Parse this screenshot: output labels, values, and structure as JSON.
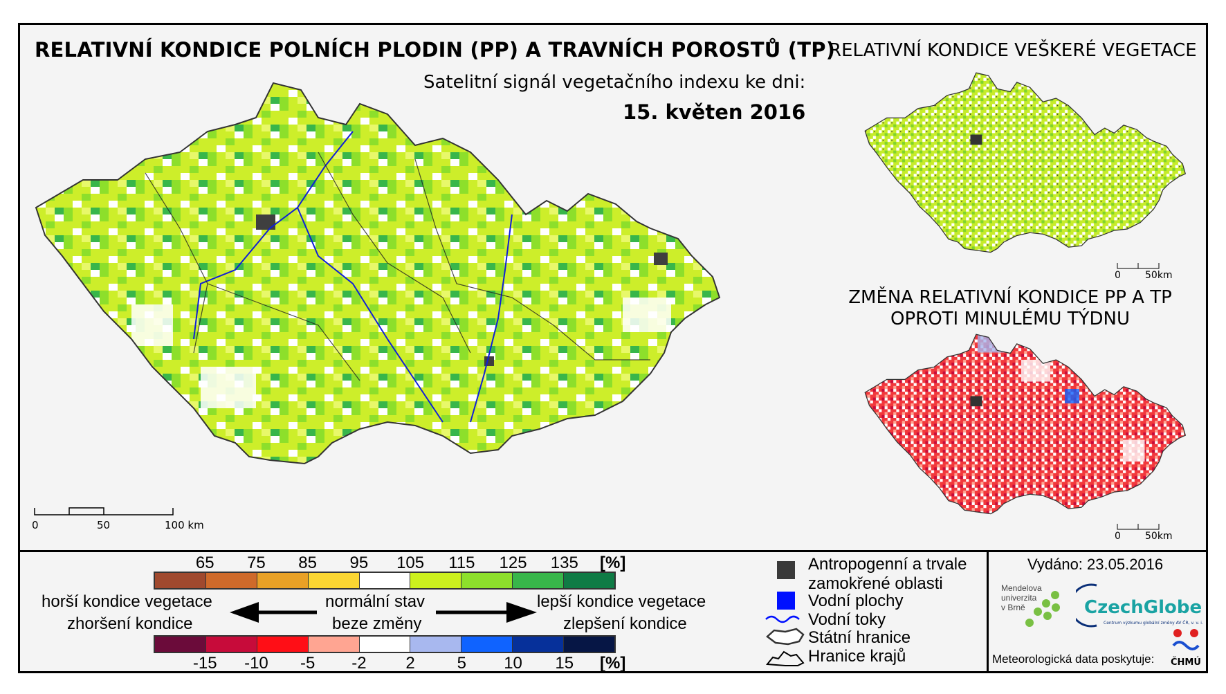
{
  "titles": {
    "main": "RELATIVNÍ KONDICE POLNÍCH PLODIN (PP) A TRAVNÍCH POROSTŮ (TP)",
    "subtitle": "Satelitní signál vegetačního indexu ke dni:",
    "date": "15. květen 2016",
    "right_top": "RELATIVNÍ KONDICE VEŠKERÉ VEGETACE",
    "right_bottom": "ZMĚNA RELATIVNÍ KONDICE PP A TP OPROTI MINULÉMU TÝDNU"
  },
  "scale_main": {
    "labels": [
      "0",
      "50",
      "100 km"
    ]
  },
  "scale_small": {
    "labels": [
      "0",
      "50km"
    ]
  },
  "legend_condition": {
    "ticks": [
      "65",
      "75",
      "85",
      "95",
      "105",
      "115",
      "125",
      "135"
    ],
    "unit": "[%]",
    "colors": [
      "#a0492e",
      "#cf6a2a",
      "#e9a126",
      "#fbd632",
      "#ffffff",
      "#ccf01e",
      "#8ddf2b",
      "#38b64a",
      "#0f7b45"
    ]
  },
  "legend_change": {
    "ticks": [
      "-15",
      "-10",
      "-5",
      "-2",
      "2",
      "5",
      "10",
      "15"
    ],
    "unit": "[%]",
    "colors": [
      "#6b0b3a",
      "#c70b3a",
      "#ff0e16",
      "#ffa592",
      "#ffffff",
      "#a8b8ef",
      "#0f63ff",
      "#06309a",
      "#061645"
    ]
  },
  "legend_labels": {
    "worse_1": "horší kondice vegetace",
    "worse_2": "zhoršení kondice",
    "normal_1": "normální stav",
    "normal_2": "beze změny",
    "better_1": "lepší kondice vegetace",
    "better_2": "zlepšení kondice"
  },
  "symbols": {
    "anthropogenic": "Antropogenní a trvale zamokřené oblasti",
    "water_bodies": "Vodní plochy",
    "rivers": "Vodní toky",
    "state_border": "Státní hranice",
    "region_border": "Hranice krajů",
    "anthropogenic_color": "#3a3a3a",
    "water_color": "#0010ff"
  },
  "footer": {
    "issued": "Vydáno: 23.05.2016",
    "mendel": [
      "Mendelova",
      "univerzita",
      "v Brně"
    ],
    "czechglobe": "CzechGlobe",
    "czechglobe_sub": "Centrum výzkumu globální změny AV ČR, v. v. i.",
    "credit": "Meteorologická data poskytuje:",
    "chmu": "ČHMÚ"
  }
}
